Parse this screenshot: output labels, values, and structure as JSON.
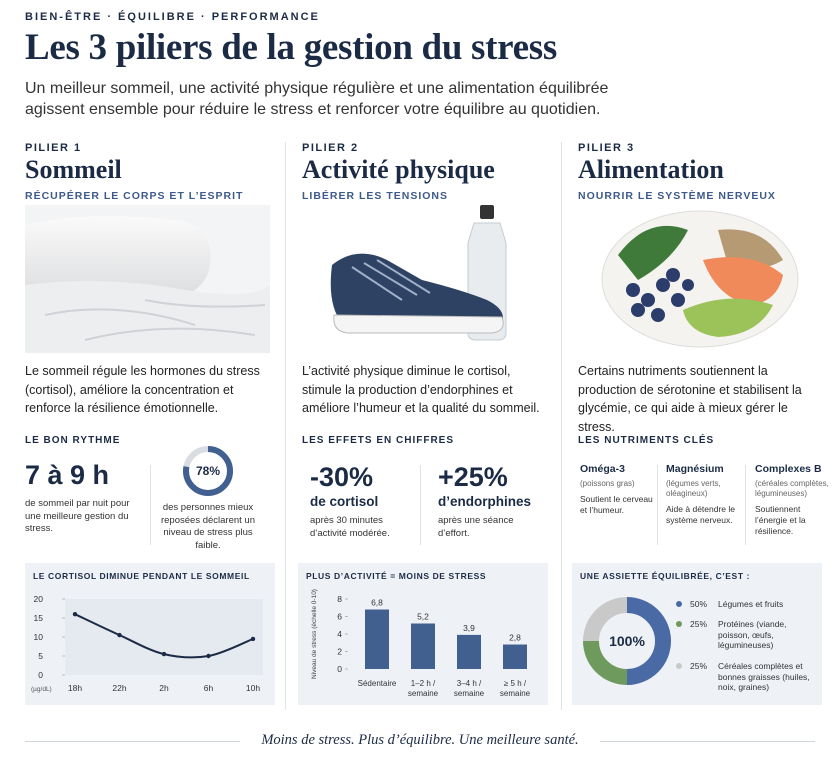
{
  "header": {
    "kicker": "BIEN-ÊTRE · ÉQUILIBRE · PERFORMANCE",
    "title": "Les 3 piliers de la gestion du stress",
    "subtitle": "Un meilleur sommeil, une activité physique régulière et une alimentation équilibrée agissent ensemble pour réduire le stress et renforcer votre équilibre au quotidien."
  },
  "pillars": [
    {
      "label": "PILIER 1",
      "name": "Sommeil",
      "tagline": "RÉCUPÉRER LE CORPS ET L’ESPRIT",
      "text": "Le sommeil régule les hormones du stress (cortisol), améliore la concentration et renforce la résilience émotionnelle.",
      "section": "LE BON RYTHME",
      "stat": "7 à 9 h",
      "stat_text": "de sommeil par nuit pour une meilleure gestion du stress.",
      "ring": {
        "value": 78,
        "label": "78%",
        "max": 100
      },
      "ring_text": "des personnes mieux reposées déclarent un niveau de stress plus faible.",
      "chart": {
        "type": "line",
        "title": "LE CORTISOL DIMINUE PENDANT LE SOMMEIL",
        "y_unit": "(µg/dL)",
        "categories": [
          "18h",
          "22h",
          "2h",
          "6h",
          "10h"
        ],
        "values": [
          16,
          10.5,
          5.5,
          5,
          9.5
        ],
        "color": "#1c2b45",
        "ylim": [
          0,
          20
        ],
        "yticks": [
          0,
          5,
          10,
          15,
          20
        ]
      }
    },
    {
      "label": "PILIER 2",
      "name": "Activité physique",
      "tagline": "LIBÉRER LES TENSIONS",
      "text": "L’activité physique diminue le cortisol, stimule la production d’endorphines et améliore l’humeur et la qualité du sommeil.",
      "section": "LES EFFETS EN CHIFFRES",
      "stats": [
        {
          "value": "-30%",
          "label": "de cortisol",
          "note": "après 30 minutes d’activité modérée."
        },
        {
          "value": "+25%",
          "label": "d’endorphines",
          "note": "après une séance d’effort."
        }
      ],
      "chart": {
        "type": "bar",
        "title": "PLUS D’ACTIVITÉ = MOINS DE STRESS",
        "y_label": "Niveau de stress (échelle 0-10)",
        "categories": [
          "Sédentaire",
          "1–2 h / semaine",
          "3–4 h / semaine",
          "≥ 5 h / semaine"
        ],
        "values": [
          6.8,
          5.2,
          3.9,
          2.8
        ],
        "value_labels": [
          "6,8",
          "5,2",
          "3,9",
          "2,8"
        ],
        "color": "#41608f",
        "ylim": [
          0,
          8
        ],
        "yticks": [
          0,
          2,
          4,
          6,
          8
        ]
      }
    },
    {
      "label": "PILIER 3",
      "name": "Alimentation",
      "tagline": "NOURRIR LE SYSTÈME NERVEUX",
      "text": "Certains nutriments soutiennent la production de sérotonine et stabilisent la glycémie, ce qui aide à mieux gérer le stress.",
      "section": "LES NUTRIMENTS CLÉS",
      "nutrients": [
        {
          "name": "Oméga-3",
          "source": "(poissons gras)",
          "text": "Soutient le cerveau et l’humeur."
        },
        {
          "name": "Magnésium",
          "source": "(légumes verts, oléagineux)",
          "text": "Aide à détendre le système nerveux."
        },
        {
          "name": "Complexes B",
          "source": "(céréales complètes, légumineuses)",
          "text": "Soutiennent l’énergie et la résilience."
        }
      ],
      "chart": {
        "type": "pie",
        "title": "UNE ASSIETTE ÉQUILIBRÉE, C’EST :",
        "center_label": "100%",
        "categories": [
          "Légumes et fruits",
          "Protéines (viande, poisson, œufs, légumineuses)",
          "Céréales complètes et bonnes graisses (huiles, noix, graines)"
        ],
        "values": [
          50,
          25,
          25
        ],
        "value_labels": [
          "50%",
          "25%",
          "25%"
        ],
        "colors": [
          "#4a6aa5",
          "#6e9a5e",
          "#c9c9c9"
        ]
      }
    }
  ],
  "footer": "Moins de stress. Plus d’équilibre. Une meilleure santé."
}
